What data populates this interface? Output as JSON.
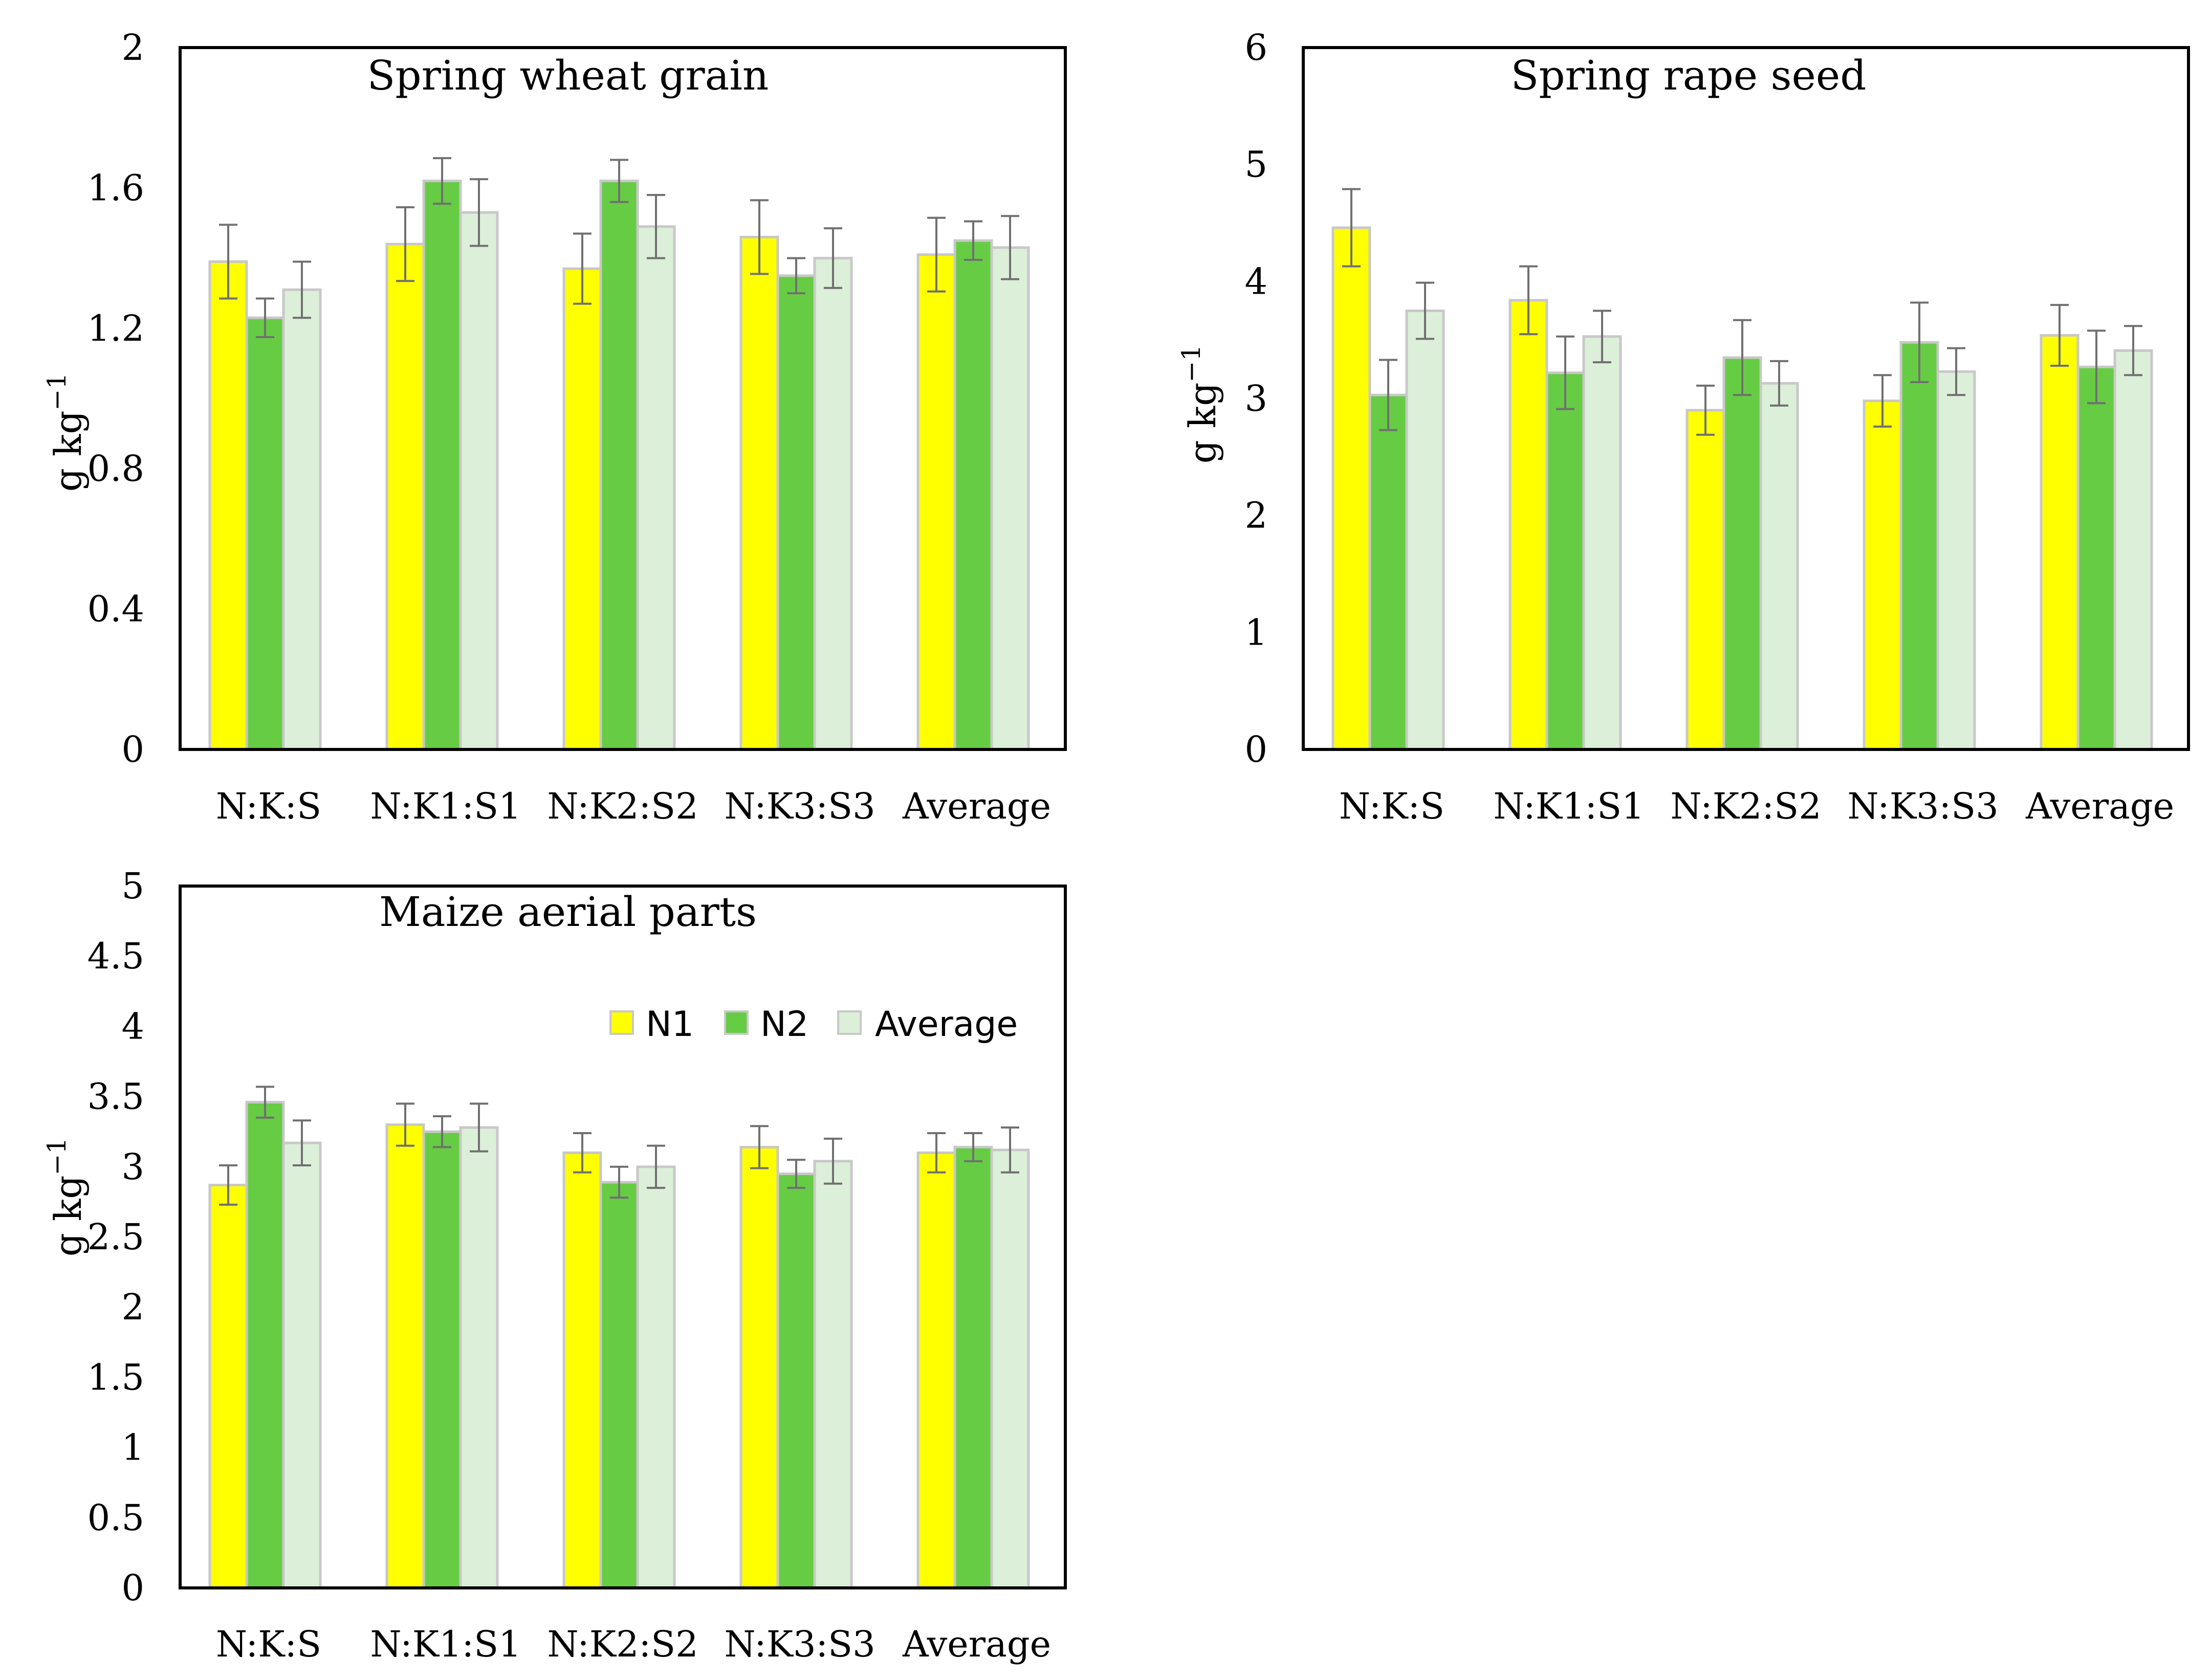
{
  "colors": {
    "N1": "#FFFF00",
    "N2": "#66CC44",
    "Average": "#DCEFD9",
    "bar_border": "#C8C8C8",
    "error_bar": "#707070",
    "frame": "#000000"
  },
  "legend": [
    "N1",
    "N2",
    "Average"
  ],
  "chart_data": [
    {
      "type": "bar",
      "title": "Spring wheat grain",
      "ylabel_main": "g kg",
      "ylabel_sup": "−1",
      "categories": [
        "N:K:S",
        "N:K1:S1",
        "N:K2:S2",
        "N:K3:S3",
        "Average"
      ],
      "yticks": [
        "0",
        "0.4",
        "0.8",
        "1.2",
        "1.6",
        "2"
      ],
      "ylim": [
        0,
        2
      ],
      "series": [
        {
          "name": "N1",
          "values": [
            1.39,
            1.44,
            1.37,
            1.46,
            1.41
          ],
          "errors": [
            0.105,
            0.105,
            0.1,
            0.105,
            0.105
          ]
        },
        {
          "name": "N2",
          "values": [
            1.23,
            1.62,
            1.62,
            1.35,
            1.45
          ],
          "errors": [
            0.055,
            0.065,
            0.06,
            0.05,
            0.055
          ]
        },
        {
          "name": "Average",
          "values": [
            1.31,
            1.53,
            1.49,
            1.4,
            1.43
          ],
          "errors": [
            0.08,
            0.095,
            0.09,
            0.085,
            0.09
          ]
        }
      ]
    },
    {
      "type": "bar",
      "title": "Spring rape seed",
      "ylabel_main": "g kg",
      "ylabel_sup": "−1",
      "categories": [
        "N:K:S",
        "N:K1:S1",
        "N:K2:S2",
        "N:K3:S3",
        "Average"
      ],
      "yticks": [
        "0",
        "1",
        "2",
        "3",
        "4",
        "5",
        "6"
      ],
      "ylim": [
        0,
        6
      ],
      "series": [
        {
          "name": "N1",
          "values": [
            4.46,
            3.84,
            2.9,
            2.98,
            3.54
          ],
          "errors": [
            0.33,
            0.29,
            0.21,
            0.22,
            0.26
          ]
        },
        {
          "name": "N2",
          "values": [
            3.03,
            3.22,
            3.35,
            3.48,
            3.27
          ],
          "errors": [
            0.3,
            0.31,
            0.32,
            0.34,
            0.31
          ]
        },
        {
          "name": "Average",
          "values": [
            3.75,
            3.53,
            3.13,
            3.23,
            3.41
          ],
          "errors": [
            0.24,
            0.22,
            0.19,
            0.2,
            0.21
          ]
        }
      ]
    },
    {
      "type": "bar",
      "title": "Maize aerial parts",
      "ylabel_main": "g kg",
      "ylabel_sup": "−1",
      "categories": [
        "N:K:S",
        "N:K1:S1",
        "N:K2:S2",
        "N:K3:S3",
        "Average"
      ],
      "yticks": [
        "0",
        "0.5",
        "1",
        "1.5",
        "2",
        "2.5",
        "3",
        "3.5",
        "4",
        "4.5",
        "5"
      ],
      "ylim": [
        0,
        5
      ],
      "series": [
        {
          "name": "N1",
          "values": [
            2.87,
            3.3,
            3.1,
            3.14,
            3.1
          ],
          "errors": [
            0.14,
            0.15,
            0.14,
            0.15,
            0.14
          ]
        },
        {
          "name": "N2",
          "values": [
            3.46,
            3.25,
            2.89,
            2.95,
            3.14
          ],
          "errors": [
            0.11,
            0.11,
            0.11,
            0.1,
            0.1
          ]
        },
        {
          "name": "Average",
          "values": [
            3.17,
            3.28,
            3.0,
            3.04,
            3.12
          ],
          "errors": [
            0.16,
            0.17,
            0.15,
            0.16,
            0.16
          ]
        }
      ]
    }
  ]
}
